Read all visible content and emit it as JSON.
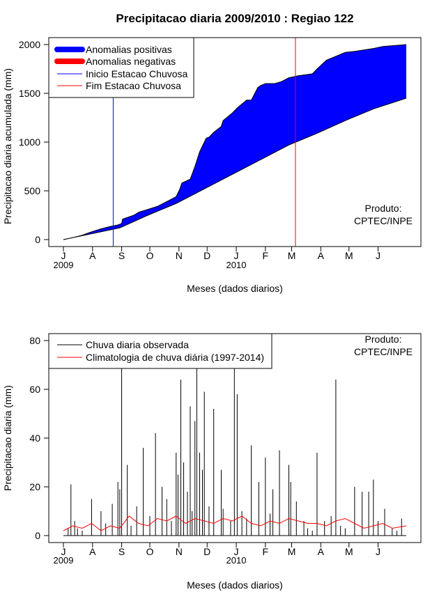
{
  "chart_data": [
    {
      "type": "area",
      "title": "Precipitacao diaria 2009/2010 : Regiao 122",
      "xlabel": "Meses (dados diarios)",
      "ylabel": "Precipitacao diaria acumulada (mm)",
      "ylim": [
        0,
        2000
      ],
      "yticks": [
        0,
        500,
        1000,
        1500,
        2000
      ],
      "month_labels": [
        "J",
        "A",
        "S",
        "O",
        "N",
        "D",
        "J",
        "F",
        "M",
        "A",
        "M",
        "J"
      ],
      "year_labels": [
        "2009",
        "2010"
      ],
      "day_range": [
        0,
        365
      ],
      "legend": {
        "position": "top-left",
        "entries": [
          {
            "label": "Anomalias positivas",
            "color": "#0000ff"
          },
          {
            "label": "Anomalias negativas",
            "color": "#ff0000"
          },
          {
            "label": "Inicio Estacao Chuvosa",
            "color": "#0000ff"
          },
          {
            "label": "Fim Estacao Chuvosa",
            "color": "#ff0000"
          }
        ]
      },
      "annotation": {
        "line1": "Produto:",
        "line2": "CPTEC/INPE",
        "position": "bottom-right"
      },
      "vlines": [
        {
          "name": "inicio",
          "day": 53,
          "color": "#0000ff"
        },
        {
          "name": "fim",
          "day": 247,
          "color": "#ff0000"
        }
      ],
      "climatology": {
        "x": [
          0,
          30,
          60,
          90,
          120,
          150,
          180,
          210,
          240,
          270,
          300,
          330,
          365
        ],
        "y": [
          0,
          60,
          120,
          250,
          370,
          520,
          670,
          820,
          970,
          1090,
          1220,
          1340,
          1450
        ]
      },
      "observed": {
        "x": [
          0,
          10,
          20,
          30,
          40,
          50,
          58,
          62,
          63,
          75,
          80,
          90,
          100,
          110,
          120,
          124,
          126,
          135,
          140,
          145,
          150,
          152,
          155,
          160,
          168,
          170,
          180,
          185,
          195,
          200,
          207,
          210,
          215,
          225,
          232,
          240,
          245,
          250,
          265,
          270,
          280,
          300,
          310,
          330,
          340,
          365
        ],
        "y": [
          0,
          20,
          45,
          80,
          110,
          135,
          150,
          165,
          210,
          250,
          280,
          310,
          340,
          390,
          440,
          520,
          580,
          620,
          750,
          900,
          1000,
          1040,
          1050,
          1100,
          1160,
          1220,
          1300,
          1350,
          1430,
          1430,
          1560,
          1580,
          1600,
          1600,
          1620,
          1660,
          1670,
          1680,
          1700,
          1750,
          1840,
          1920,
          1930,
          1960,
          1980,
          2000
        ]
      }
    },
    {
      "type": "bar",
      "xlabel": "Meses (dados diarios)",
      "ylabel": "Precipitacao diaria (mm)",
      "ylim": [
        0,
        80
      ],
      "yticks": [
        0,
        20,
        40,
        60,
        80
      ],
      "month_labels": [
        "J",
        "A",
        "S",
        "O",
        "N",
        "D",
        "J",
        "F",
        "M",
        "A",
        "M",
        "J"
      ],
      "year_labels": [
        "2009",
        "2010"
      ],
      "day_range": [
        0,
        365
      ],
      "legend": {
        "position": "top-left",
        "entries": [
          {
            "label": "Chuva diaria observada",
            "color": "#000000"
          },
          {
            "label": "Climatologia de chuva diária (1997-2014)",
            "color": "#ff0000"
          }
        ]
      },
      "annotation": {
        "line1": "Produto:",
        "line2": "CPTEC/INPE",
        "position": "top-right"
      },
      "observed_bars": {
        "day": [
          5,
          8,
          12,
          15,
          20,
          30,
          40,
          45,
          52,
          58,
          60,
          62,
          68,
          72,
          78,
          85,
          92,
          98,
          105,
          110,
          115,
          120,
          122,
          125,
          128,
          132,
          135,
          137,
          140,
          142,
          145,
          148,
          150,
          155,
          160,
          168,
          170,
          178,
          182,
          185,
          190,
          195,
          200,
          208,
          215,
          220,
          223,
          230,
          240,
          242,
          248,
          256,
          260,
          265,
          270,
          278,
          285,
          290,
          295,
          300,
          310,
          318,
          325,
          330,
          335,
          342,
          350,
          355,
          360
        ],
        "value": [
          3,
          21,
          6,
          3,
          2,
          15,
          10,
          5,
          13,
          22,
          19,
          69,
          29,
          4,
          12,
          36,
          8,
          42,
          20,
          15,
          6,
          34,
          25,
          64,
          30,
          18,
          53,
          10,
          47,
          69,
          34,
          27,
          59,
          12,
          52,
          27,
          11,
          6,
          69,
          58,
          10,
          7,
          37,
          22,
          32,
          9,
          19,
          35,
          29,
          22,
          14,
          6,
          3,
          2,
          34,
          6,
          8,
          64,
          4,
          3,
          20,
          18,
          18,
          23,
          6,
          11,
          3,
          2,
          7
        ]
      },
      "climatology": {
        "x": [
          0,
          10,
          20,
          30,
          40,
          50,
          60,
          70,
          80,
          90,
          100,
          110,
          120,
          130,
          140,
          150,
          160,
          170,
          180,
          190,
          200,
          210,
          220,
          230,
          240,
          250,
          260,
          270,
          280,
          290,
          300,
          310,
          320,
          330,
          340,
          350,
          365
        ],
        "y": [
          2,
          4,
          3,
          5,
          2,
          4,
          3,
          8,
          5,
          4,
          7,
          6,
          8,
          5,
          7,
          6,
          5,
          7,
          6,
          8,
          5,
          4,
          6,
          5,
          7,
          6,
          5,
          5,
          4,
          6,
          7,
          5,
          3,
          4,
          5,
          3,
          4
        ]
      }
    }
  ]
}
